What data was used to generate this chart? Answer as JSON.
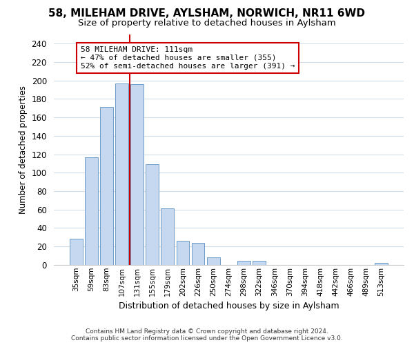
{
  "title": "58, MILEHAM DRIVE, AYLSHAM, NORWICH, NR11 6WD",
  "subtitle": "Size of property relative to detached houses in Aylsham",
  "xlabel": "Distribution of detached houses by size in Aylsham",
  "ylabel": "Number of detached properties",
  "categories": [
    "35sqm",
    "59sqm",
    "83sqm",
    "107sqm",
    "131sqm",
    "155sqm",
    "179sqm",
    "202sqm",
    "226sqm",
    "250sqm",
    "274sqm",
    "298sqm",
    "322sqm",
    "346sqm",
    "370sqm",
    "394sqm",
    "418sqm",
    "442sqm",
    "466sqm",
    "489sqm",
    "513sqm"
  ],
  "bar_values": [
    28,
    117,
    171,
    197,
    196,
    109,
    61,
    26,
    24,
    8,
    0,
    4,
    4,
    0,
    0,
    0,
    0,
    0,
    0,
    0,
    2
  ],
  "bar_color": "#c5d8f0",
  "bar_edgecolor": "#5b8fbf",
  "vline_x": 3.5,
  "vline_color": "#cc0000",
  "annotation_text": "58 MILEHAM DRIVE: 111sqm\n← 47% of detached houses are smaller (355)\n52% of semi-detached houses are larger (391) →",
  "annotation_box_edgecolor": "#cc0000",
  "annotation_box_facecolor": "#ffffff",
  "ylim": [
    0,
    250
  ],
  "yticks": [
    0,
    20,
    40,
    60,
    80,
    100,
    120,
    140,
    160,
    180,
    200,
    220,
    240
  ],
  "footer_line1": "Contains HM Land Registry data © Crown copyright and database right 2024.",
  "footer_line2": "Contains public sector information licensed under the Open Government Licence v3.0.",
  "bg_color": "#ffffff",
  "grid_color": "#d0dce8",
  "title_fontsize": 11,
  "subtitle_fontsize": 9.5
}
